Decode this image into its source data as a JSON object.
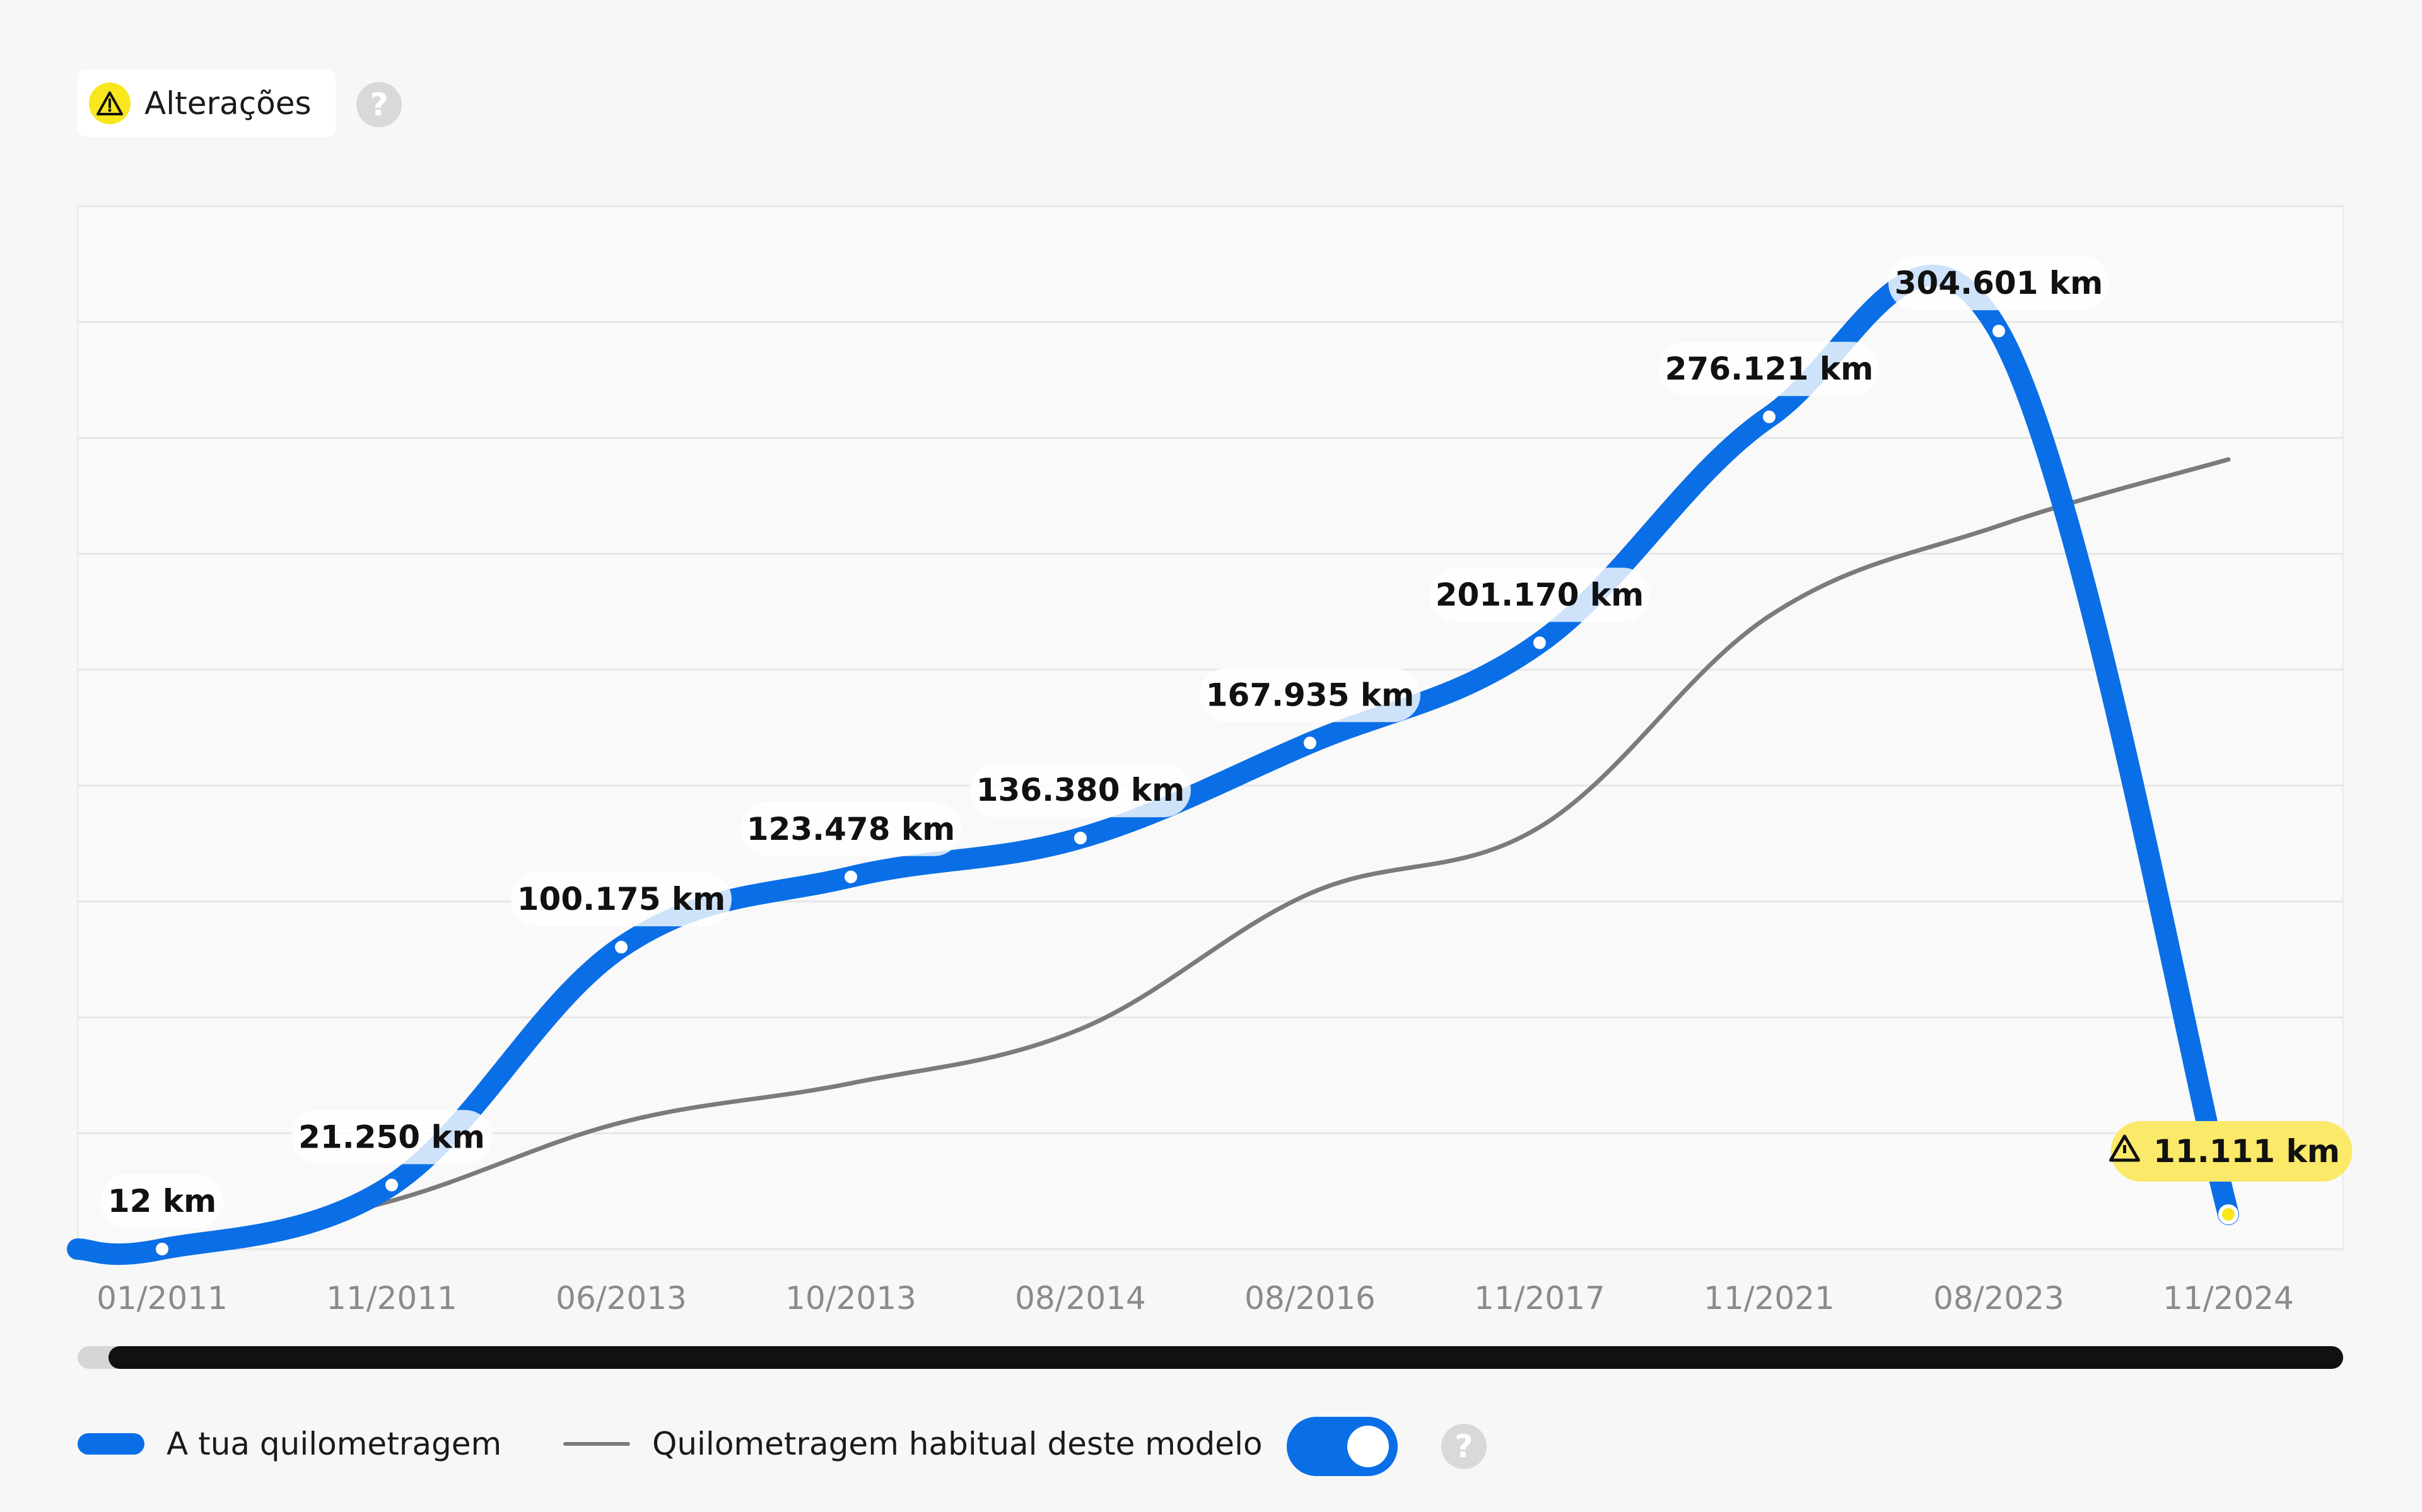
{
  "header": {
    "alerts_label": "Alterações",
    "alert_icon": "warning-triangle-icon",
    "help_icon": "question-mark-icon"
  },
  "colors": {
    "your_mileage": "#0a6fe6",
    "typical_mileage": "#7b7b7b",
    "warning": "#f8e71c",
    "warning_label_bg": "#fbe96a"
  },
  "chart_data": {
    "type": "line",
    "title": "",
    "xlabel": "",
    "ylabel": "",
    "y_unit": "km",
    "ylim": [
      0,
      360000
    ],
    "grid": true,
    "categories": [
      "01/2011",
      "11/2011",
      "06/2013",
      "10/2013",
      "08/2014",
      "08/2016",
      "11/2017",
      "11/2021",
      "08/2023",
      "11/2024"
    ],
    "series": [
      {
        "name": "A tua quilometragem",
        "values": [
          12,
          21250,
          100175,
          123478,
          136380,
          167935,
          201170,
          276121,
          304601,
          11111
        ],
        "labels": [
          "12 km",
          "21.250 km",
          "100.175 km",
          "123.478 km",
          "136.380 km",
          "167.935 km",
          "201.170 km",
          "276.121 km",
          "304.601 km",
          "11.111 km"
        ],
        "flagged_index": 9
      },
      {
        "name": "Quilometragem habitual deste modelo",
        "values": [
          0,
          16000,
          42000,
          55000,
          73000,
          118000,
          140000,
          210000,
          240000,
          262000
        ]
      }
    ],
    "legend_placement": "bottom-left"
  },
  "legend": {
    "your_mileage_label": "A tua quilometragem",
    "typical_mileage_label": "Quilometragem habitual deste modelo"
  },
  "controls": {
    "typical_mileage_toggle_on": true,
    "scrollbar_visible_fraction": 0.986
  }
}
